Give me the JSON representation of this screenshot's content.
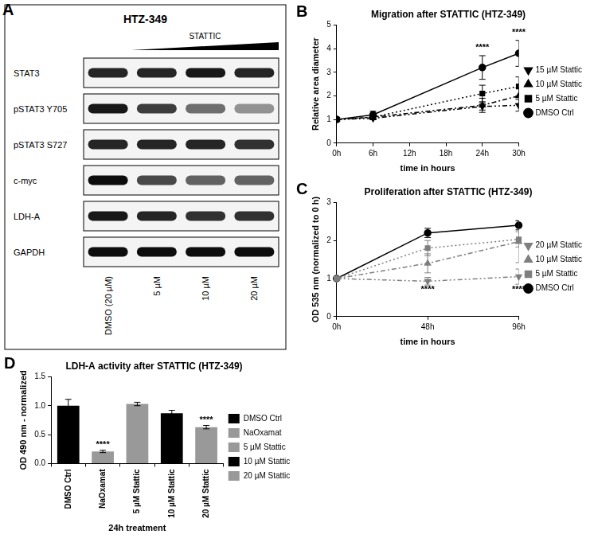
{
  "blot": {
    "panel": "A",
    "title": "HTZ-349",
    "treatment": "STATTIC",
    "lanes": [
      "DMSO (20 µM)",
      "5 µM",
      "10 µM",
      "20 µM"
    ],
    "rows": [
      {
        "label": "STAT3",
        "intensity": [
          0.85,
          0.85,
          0.9,
          0.85
        ]
      },
      {
        "label": "pSTAT3 Y705",
        "intensity": [
          0.9,
          0.75,
          0.55,
          0.4
        ]
      },
      {
        "label": "pSTAT3 S727",
        "intensity": [
          0.85,
          0.85,
          0.85,
          0.8
        ]
      },
      {
        "label": "c-myc",
        "intensity": [
          0.95,
          0.7,
          0.6,
          0.6
        ]
      },
      {
        "label": "LDH-A",
        "intensity": [
          0.9,
          0.85,
          0.8,
          0.8
        ]
      },
      {
        "label": "GAPDH",
        "intensity": [
          0.95,
          0.95,
          0.95,
          0.95
        ]
      }
    ]
  },
  "chart_data": [
    {
      "panel": "B",
      "type": "line",
      "title": "Migration after STATTIC (HTZ-349)",
      "x_label": "time in hours",
      "y_label": "Relative area diameter",
      "x": [
        0,
        6,
        24,
        30
      ],
      "xlim": [
        0,
        30
      ],
      "xticks": [
        {
          "value": 0,
          "label": "0h"
        },
        {
          "value": 6,
          "label": "6h"
        },
        {
          "value": 12,
          "label": "12h"
        },
        {
          "value": 18,
          "label": "18h"
        },
        {
          "value": 24,
          "label": "24h"
        },
        {
          "value": 30,
          "label": "30h"
        }
      ],
      "ylim": [
        0,
        5
      ],
      "yticks": [
        0,
        1,
        2,
        3,
        4,
        5
      ],
      "grid": false,
      "legend": "right",
      "series": [
        {
          "name": "15 µM Stattic",
          "color": "#000000",
          "marker": "triangle-down",
          "line_style": "dashdotdot",
          "values": [
            1,
            1.05,
            1.55,
            1.6
          ],
          "errors": [
            0,
            0.05,
            0.15,
            0.25
          ]
        },
        {
          "name": "10 µM Stattic",
          "color": "#000000",
          "marker": "triangle",
          "line_style": "dashdot",
          "values": [
            1,
            1.1,
            1.6,
            2.0
          ],
          "errors": [
            0,
            0.1,
            0.3,
            0.35
          ]
        },
        {
          "name": "5 µM Stattic",
          "color": "#000000",
          "marker": "square",
          "line_style": "dotted",
          "values": [
            1,
            1.1,
            2.1,
            2.4
          ],
          "errors": [
            0,
            0.1,
            0.35,
            0.4
          ]
        },
        {
          "name": "DMSO Ctrl",
          "color": "#000000",
          "marker": "circle",
          "line_style": "solid",
          "values": [
            1,
            1.2,
            3.2,
            3.8
          ],
          "errors": [
            0,
            0.15,
            0.5,
            0.55
          ]
        }
      ],
      "annotations": [
        {
          "text": "****",
          "x": 24,
          "y": 3.85
        },
        {
          "text": "****",
          "x": 30,
          "y": 4.5
        }
      ]
    },
    {
      "panel": "C",
      "type": "line",
      "title": "Proliferation after STATTIC (HTZ-349)",
      "x_label": "time in hours",
      "y_label": "OD 535 nm (normalized to 0 h)",
      "categories": [
        "0h",
        "48h",
        "96h"
      ],
      "ylim": [
        0,
        3
      ],
      "yticks": [
        0,
        1,
        2,
        3
      ],
      "grid": false,
      "legend": "right",
      "series": [
        {
          "name": "20 µM Stattic",
          "color": "#7f7f7f",
          "marker": "triangle-down",
          "line_style": "dashdotdot",
          "values": [
            1,
            0.93,
            1.05
          ],
          "errors": [
            0,
            0.1,
            0.2
          ]
        },
        {
          "name": "10 µM Stattic",
          "color": "#7f7f7f",
          "marker": "triangle",
          "line_style": "dashdot",
          "values": [
            1,
            1.4,
            1.97
          ],
          "errors": [
            0,
            0.25,
            0.55
          ]
        },
        {
          "name": "5 µM Stattic",
          "color": "#7f7f7f",
          "marker": "square",
          "line_style": "dotted",
          "values": [
            1,
            1.8,
            2.03
          ],
          "errors": [
            0,
            0.2,
            0.2
          ]
        },
        {
          "name": "DMSO Ctrl",
          "color": "#000000",
          "marker": "circle",
          "line_style": "solid",
          "values": [
            1,
            2.2,
            2.4
          ],
          "errors": [
            0,
            0.12,
            0.12
          ]
        }
      ],
      "annotations": [
        {
          "text": "****",
          "x": "48h",
          "y": 0.6
        },
        {
          "text": "****",
          "x": "96h",
          "y": 0.6
        }
      ]
    },
    {
      "panel": "D",
      "type": "bar",
      "title": "LDH-A activity after STATTIC (HTZ-349)",
      "x_label": "24h treatment",
      "y_label": "OD 490 nm - normalized",
      "categories": [
        "DMSO Ctrl",
        "NaOxamat",
        "5 µM Stattic",
        "10 µM Stattic",
        "20 µM Stattic"
      ],
      "values": [
        1.0,
        0.21,
        1.03,
        0.87,
        0.63
      ],
      "errors": [
        0.11,
        0.02,
        0.03,
        0.05,
        0.03
      ],
      "colors": [
        "#000000",
        "#999999",
        "#999999",
        "#000000",
        "#999999"
      ],
      "ylim": [
        0,
        1.5
      ],
      "yticks": [
        {
          "value": 0,
          "label": "0.0"
        },
        {
          "value": 0.5,
          "label": "0.5"
        },
        {
          "value": 1.0,
          "label": "1.0"
        },
        {
          "value": 1.5,
          "label": "1.5"
        }
      ],
      "grid": false,
      "legend": "right",
      "annotations": [
        {
          "text": "****",
          "x": "NaOxamat",
          "y": 0.25
        },
        {
          "text": "****",
          "x": "20 µM Stattic",
          "y": 0.68
        }
      ]
    }
  ]
}
